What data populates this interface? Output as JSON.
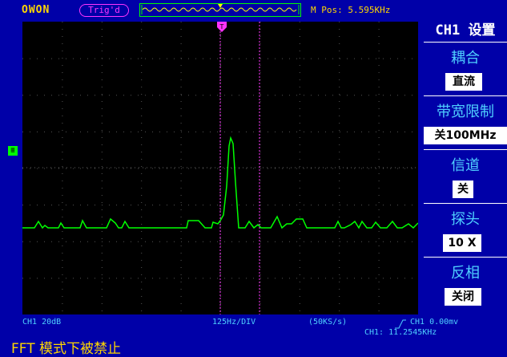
{
  "header": {
    "brand": "OWON",
    "trigger_state": "Trig'd",
    "m_pos_label": "M Pos: 5.595KHz",
    "menu_title": "CH1 设置"
  },
  "menu": {
    "items": [
      {
        "label": "耦合",
        "value": "直流"
      },
      {
        "label": "带宽限制",
        "value": "关100MHz"
      },
      {
        "label": "信道",
        "value": "关"
      },
      {
        "label": "探头",
        "value": "10 X"
      },
      {
        "label": "反相",
        "value": "关闭"
      }
    ]
  },
  "footer": {
    "ch1_scale": "CH1 20dB",
    "horizontal": "125Hz/DIV",
    "sample_rate": "(50KS/s)",
    "trigger_level": "CH1  0.00mv",
    "freq_readout": "CH1: 11.2545KHz",
    "message": "FFT 模式下被禁止"
  },
  "colors": {
    "trace": "#00ff00",
    "cursor": "#ff33ff",
    "accent": "#ffd700",
    "label": "#4fd0ff"
  }
}
